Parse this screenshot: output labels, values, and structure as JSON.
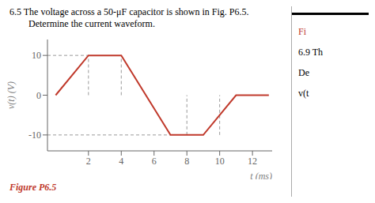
{
  "chart_data": {
    "type": "line",
    "title": "6.5  The voltage across a 50-μF capacitor is shown in Fig. P6.5.",
    "subtitle": "Determine the current waveform.",
    "x_label": "t (ms)",
    "y_label": "v(t) (V)",
    "x": [
      0,
      2,
      4,
      7,
      9,
      11,
      13
    ],
    "values": [
      0,
      10,
      10,
      -10,
      -10,
      0,
      0
    ],
    "color": "#c0392b",
    "marker": "none",
    "xlim": [
      -0.5,
      13.2
    ],
    "ylim": [
      -14,
      14
    ],
    "xticks": [
      2,
      4,
      6,
      8,
      10,
      12
    ],
    "yticks": [
      -10,
      0,
      10
    ],
    "grid": false,
    "reference_lines": [
      {
        "x": [
          -0.5,
          2
        ],
        "y": [
          10,
          10
        ],
        "line_style": "dashed"
      },
      {
        "x": [
          -0.5,
          7
        ],
        "y": [
          -10,
          -10
        ],
        "line_style": "dashed"
      },
      {
        "x": [
          2,
          2
        ],
        "y": [
          0,
          10
        ],
        "line_style": "dashed"
      },
      {
        "x": [
          4,
          4
        ],
        "y": [
          0,
          10
        ],
        "line_style": "dashed"
      },
      {
        "x": [
          8,
          8
        ],
        "y": [
          -10,
          0
        ],
        "line_style": "dashed"
      },
      {
        "x": [
          10,
          10
        ],
        "y": [
          -10,
          0
        ],
        "line_style": "dashed"
      }
    ],
    "annotations": [
      {
        "text": "Fi",
        "color": "#c0392b"
      },
      {
        "text": "6.9 Th"
      },
      {
        "text": "De"
      },
      {
        "text": "v(t"
      }
    ],
    "caption": {
      "text": "Figure P6.5",
      "color": "#c0392b"
    }
  }
}
